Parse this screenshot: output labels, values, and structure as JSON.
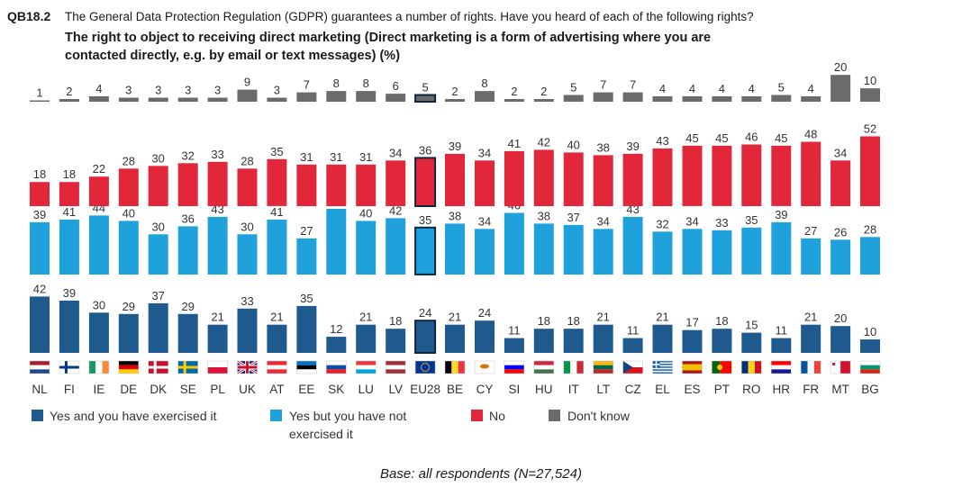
{
  "header": {
    "code": "QB18.2",
    "question": "The General Data Protection Regulation (GDPR) guarantees a number of rights. Have you heard of each of the following rights?",
    "subtitle_line1": "The right to object to receiving direct marketing (Direct marketing is a form of advertising where you are",
    "subtitle_line2": "contacted directly, e.g. by email or text messages)  (%)"
  },
  "legend": {
    "items": [
      {
        "label": "Yes and you have exercised it",
        "line2": "",
        "color": "#1e5a8e"
      },
      {
        "label": "Yes but you have not",
        "line2": "exercised it",
        "color": "#1fa2dc"
      },
      {
        "label": "No",
        "line2": "",
        "color": "#e3273a"
      },
      {
        "label": "Don't know",
        "line2": "",
        "color": "#6b6b6b"
      }
    ]
  },
  "base_note": "Base: all respondents (N=27,524)",
  "chart_data": {
    "type": "bar",
    "subtype": "segmented-stacked-bar",
    "categories": [
      "NL",
      "FI",
      "IE",
      "DE",
      "DK",
      "SE",
      "PL",
      "UK",
      "AT",
      "EE",
      "SK",
      "LU",
      "LV",
      "EU28",
      "BE",
      "CY",
      "SI",
      "HU",
      "IT",
      "LT",
      "CZ",
      "EL",
      "ES",
      "PT",
      "RO",
      "HR",
      "FR",
      "MT",
      "BG"
    ],
    "highlight_category": "EU28",
    "series": [
      {
        "name": "Yes and you have exercised it",
        "color": "#1e5a8e",
        "values": [
          42,
          39,
          30,
          29,
          37,
          29,
          21,
          33,
          21,
          35,
          12,
          21,
          18,
          24,
          21,
          24,
          11,
          18,
          18,
          21,
          11,
          21,
          17,
          18,
          15,
          11,
          21,
          20,
          10
        ]
      },
      {
        "name": "Yes but you have not exercised it",
        "color": "#1fa2dc",
        "values": [
          39,
          41,
          44,
          40,
          30,
          36,
          43,
          30,
          41,
          27,
          49,
          40,
          42,
          35,
          38,
          34,
          46,
          38,
          37,
          34,
          43,
          32,
          34,
          33,
          35,
          39,
          27,
          26,
          28
        ]
      },
      {
        "name": "No",
        "color": "#e3273a",
        "values": [
          18,
          18,
          22,
          28,
          30,
          32,
          33,
          28,
          35,
          31,
          31,
          31,
          34,
          36,
          39,
          34,
          41,
          42,
          40,
          38,
          39,
          43,
          45,
          45,
          46,
          45,
          48,
          34,
          52
        ]
      },
      {
        "name": "Don't know",
        "color": "#6b6b6b",
        "values": [
          1,
          2,
          4,
          3,
          3,
          3,
          3,
          9,
          3,
          7,
          8,
          8,
          6,
          5,
          2,
          8,
          2,
          2,
          5,
          7,
          7,
          4,
          4,
          4,
          4,
          5,
          4,
          20,
          10
        ]
      }
    ],
    "flags": {
      "NL": [
        "h",
        "#ae1c28",
        "#ffffff",
        "#21468b"
      ],
      "FI": [
        "nordic",
        "#ffffff",
        "#003580"
      ],
      "IE": [
        "v",
        "#169b62",
        "#ffffff",
        "#ff883e"
      ],
      "DE": [
        "h",
        "#000000",
        "#dd0000",
        "#ffce00"
      ],
      "DK": [
        "nordic",
        "#c8102e",
        "#ffffff"
      ],
      "SE": [
        "nordic",
        "#006aa7",
        "#fecc00"
      ],
      "PL": [
        "h",
        "#ffffff",
        "#dc143c"
      ],
      "UK": [
        "uk"
      ],
      "AT": [
        "h",
        "#ed2939",
        "#ffffff",
        "#ed2939"
      ],
      "EE": [
        "h",
        "#0072ce",
        "#000000",
        "#ffffff"
      ],
      "SK": [
        "h",
        "#ffffff",
        "#0b4ea2",
        "#ee1c25"
      ],
      "LU": [
        "h",
        "#ef3340",
        "#ffffff",
        "#00a3e0"
      ],
      "LV": [
        "h",
        "#9e3039",
        "#ffffff",
        "#9e3039"
      ],
      "EU28": [
        "eu",
        "#003399",
        "#ffcc00"
      ],
      "BE": [
        "v",
        "#000000",
        "#fdda24",
        "#ef3340"
      ],
      "CY": [
        "cy",
        "#ffffff",
        "#d57800"
      ],
      "SI": [
        "h",
        "#ffffff",
        "#0000ff",
        "#ff0000"
      ],
      "HU": [
        "h",
        "#ce2939",
        "#ffffff",
        "#477050"
      ],
      "IT": [
        "v",
        "#009246",
        "#ffffff",
        "#ce2b37"
      ],
      "LT": [
        "h",
        "#fdb913",
        "#006a44",
        "#c1272d"
      ],
      "CZ": [
        "cz",
        "#ffffff",
        "#d7141a",
        "#11457e"
      ],
      "EL": [
        "el",
        "#0d5eaf",
        "#ffffff"
      ],
      "ES": [
        "es",
        "#aa151b",
        "#f1bf00"
      ],
      "PT": [
        "pt",
        "#006600",
        "#ff0000"
      ],
      "RO": [
        "v",
        "#002b7f",
        "#fcd116",
        "#ce1126"
      ],
      "HR": [
        "h",
        "#ff0000",
        "#ffffff",
        "#171796"
      ],
      "FR": [
        "v",
        "#0055a4",
        "#ffffff",
        "#ef4135"
      ],
      "MT": [
        "v2",
        "#ffffff",
        "#cf142b"
      ],
      "BG": [
        "h",
        "#ffffff",
        "#00966e",
        "#d62612"
      ]
    }
  }
}
